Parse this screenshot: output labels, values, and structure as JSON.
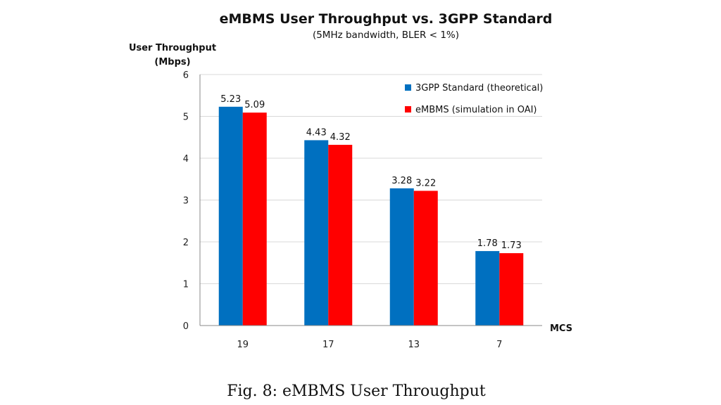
{
  "chart_data": {
    "type": "bar",
    "title": "eMBMS User Throughput vs. 3GPP Standard",
    "subtitle": "(5MHz bandwidth, BLER < 1%)",
    "ylabel": "User Throughput",
    "ylabel_unit": "(Mbps)",
    "xlabel": "MCS",
    "categories": [
      "19",
      "17",
      "13",
      "7"
    ],
    "ylim": [
      0,
      6
    ],
    "yticks": [
      0,
      1,
      2,
      3,
      4,
      5,
      6
    ],
    "grid": true,
    "legend_position": "top-right",
    "series": [
      {
        "name": "3GPP Standard (theoretical)",
        "color": "#0070C0",
        "values": [
          5.23,
          4.43,
          3.28,
          1.78
        ]
      },
      {
        "name": "eMBMS (simulation in OAI)",
        "color": "#FF0000",
        "values": [
          5.09,
          4.32,
          3.22,
          1.73
        ]
      }
    ]
  },
  "caption": "Fig. 8: eMBMS User Throughput"
}
